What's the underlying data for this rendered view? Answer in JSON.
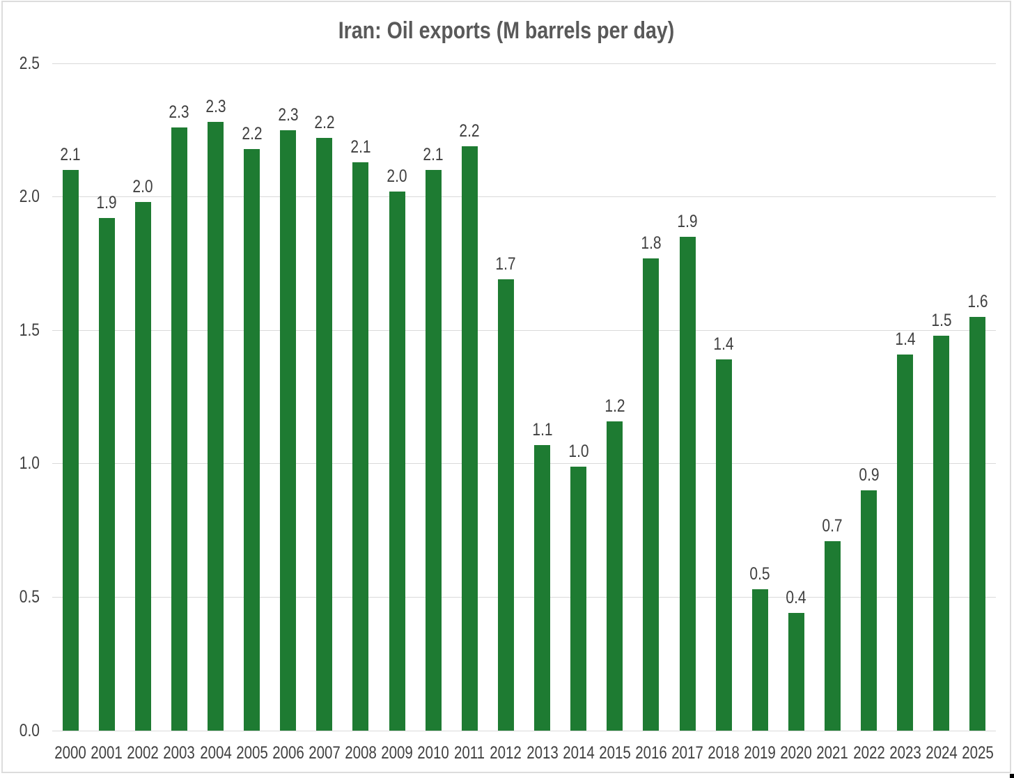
{
  "chart_data": {
    "type": "bar",
    "title": "Iran: Oil exports (M barrels per day)",
    "categories": [
      "2000",
      "2001",
      "2002",
      "2003",
      "2004",
      "2005",
      "2006",
      "2007",
      "2008",
      "2009",
      "2010",
      "2011",
      "2012",
      "2013",
      "2014",
      "2015",
      "2016",
      "2017",
      "2018",
      "2019",
      "2020",
      "2021",
      "2022",
      "2023",
      "2024",
      "2025"
    ],
    "values": [
      2.1,
      1.9,
      2.0,
      2.3,
      2.3,
      2.2,
      2.3,
      2.2,
      2.1,
      2.0,
      2.1,
      2.2,
      1.7,
      1.1,
      1.0,
      1.2,
      1.8,
      1.9,
      1.4,
      0.5,
      0.4,
      0.7,
      0.9,
      1.4,
      1.5,
      1.6
    ],
    "values_precise": [
      2.1,
      1.92,
      1.98,
      2.26,
      2.28,
      2.18,
      2.25,
      2.22,
      2.13,
      2.02,
      2.1,
      2.19,
      1.69,
      1.07,
      0.99,
      1.16,
      1.77,
      1.85,
      1.39,
      0.53,
      0.44,
      0.71,
      0.9,
      1.41,
      1.48,
      1.55
    ],
    "data_labels": [
      "2.1",
      "1.9",
      "2.0",
      "2.3",
      "2.3",
      "2.2",
      "2.3",
      "2.2",
      "2.1",
      "2.0",
      "2.1",
      "2.2",
      "1.7",
      "1.1",
      "1.0",
      "1.2",
      "1.8",
      "1.9",
      "1.4",
      "0.5",
      "0.4",
      "0.7",
      "0.9",
      "1.4",
      "1.5",
      "1.6"
    ],
    "xlabel": "",
    "ylabel": "",
    "ylim": [
      0,
      2.5
    ],
    "yticks": [
      "2.5",
      "2.0",
      "1.5",
      "1.0",
      "0.5",
      "0.0"
    ],
    "grid": true,
    "legend": false,
    "bar_color": "#1e7b32",
    "grid_color": "#d9d9d9",
    "label_color": "#3f3f3f",
    "axis_text_color": "#404040",
    "title_color": "#595959",
    "border_color": "#dcdcdc"
  }
}
